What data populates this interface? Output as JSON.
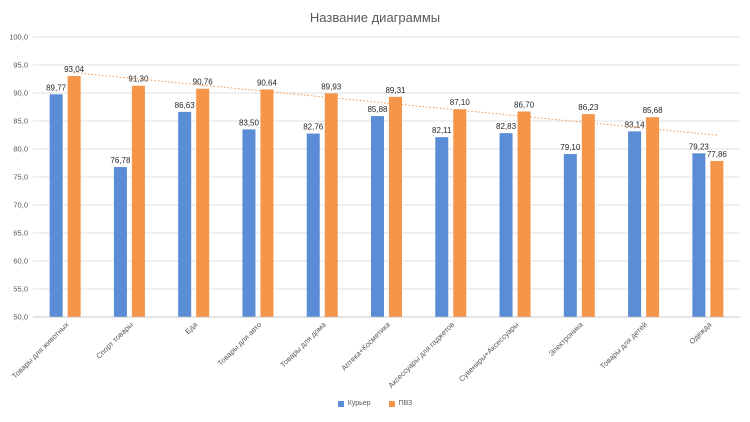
{
  "chart_data": {
    "type": "bar",
    "title": "Название диаграммы",
    "categories": [
      "Товары для животных",
      "Спорт товары",
      "Еда",
      "Товары для авто",
      "Товары для дома",
      "Аптека+Косметика",
      "Аксессуары для гаджетов",
      "Сувениры+Аксессуары",
      "Электроника",
      "Товары для детей",
      "Одежда"
    ],
    "series": [
      {
        "name": "Курьер",
        "color": "#5B8CD6",
        "values": [
          89.77,
          76.78,
          86.63,
          83.5,
          82.76,
          85.88,
          82.11,
          82.83,
          79.1,
          83.14,
          79.23
        ],
        "labels": [
          "89,77",
          "76,78",
          "86,63",
          "83,50",
          "82,76",
          "85,88",
          "82,11",
          "82,83",
          "79,10",
          "83,14",
          "79,23"
        ]
      },
      {
        "name": "ПВЗ",
        "color": "#F4954A",
        "values": [
          93.04,
          91.3,
          90.76,
          90.64,
          89.93,
          89.31,
          87.1,
          86.7,
          86.23,
          85.68,
          77.86
        ],
        "labels": [
          "93,04",
          "91,30",
          "90,76",
          "90,64",
          "89,93",
          "89,31",
          "87,10",
          "86,70",
          "86,23",
          "85,68",
          "77,86"
        ]
      }
    ],
    "trendline": {
      "series": "ПВЗ",
      "type": "linear",
      "style": "dotted",
      "color": "#F4954A"
    },
    "ylim": [
      50,
      100
    ],
    "yticks": [
      "50,0",
      "55,0",
      "60,0",
      "65,0",
      "70,0",
      "75,0",
      "80,0",
      "85,0",
      "90,0",
      "95,0",
      "100,0"
    ],
    "grid": true,
    "legend_position": "bottom"
  }
}
